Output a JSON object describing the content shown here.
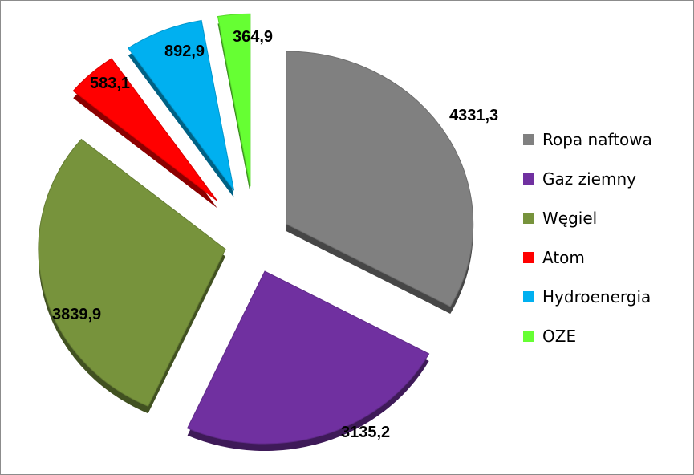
{
  "chart_data": {
    "type": "pie",
    "categories": [
      "Ropa naftowa",
      "Gaz ziemny",
      "Węgiel",
      "Atom",
      "Hydroenergia",
      "OZE"
    ],
    "values": [
      4331.3,
      3135.2,
      3839.9,
      583.1,
      892.9,
      364.9
    ],
    "value_labels": [
      "4331,3",
      "3135,2",
      "3839,9",
      "583,1",
      "892,9",
      "364,9"
    ],
    "colors": [
      "#808080",
      "#7030a0",
      "#77933c",
      "#ff0000",
      "#00b0f0",
      "#66ff33"
    ],
    "exploded": true,
    "three_d": true,
    "legend_position": "right"
  }
}
